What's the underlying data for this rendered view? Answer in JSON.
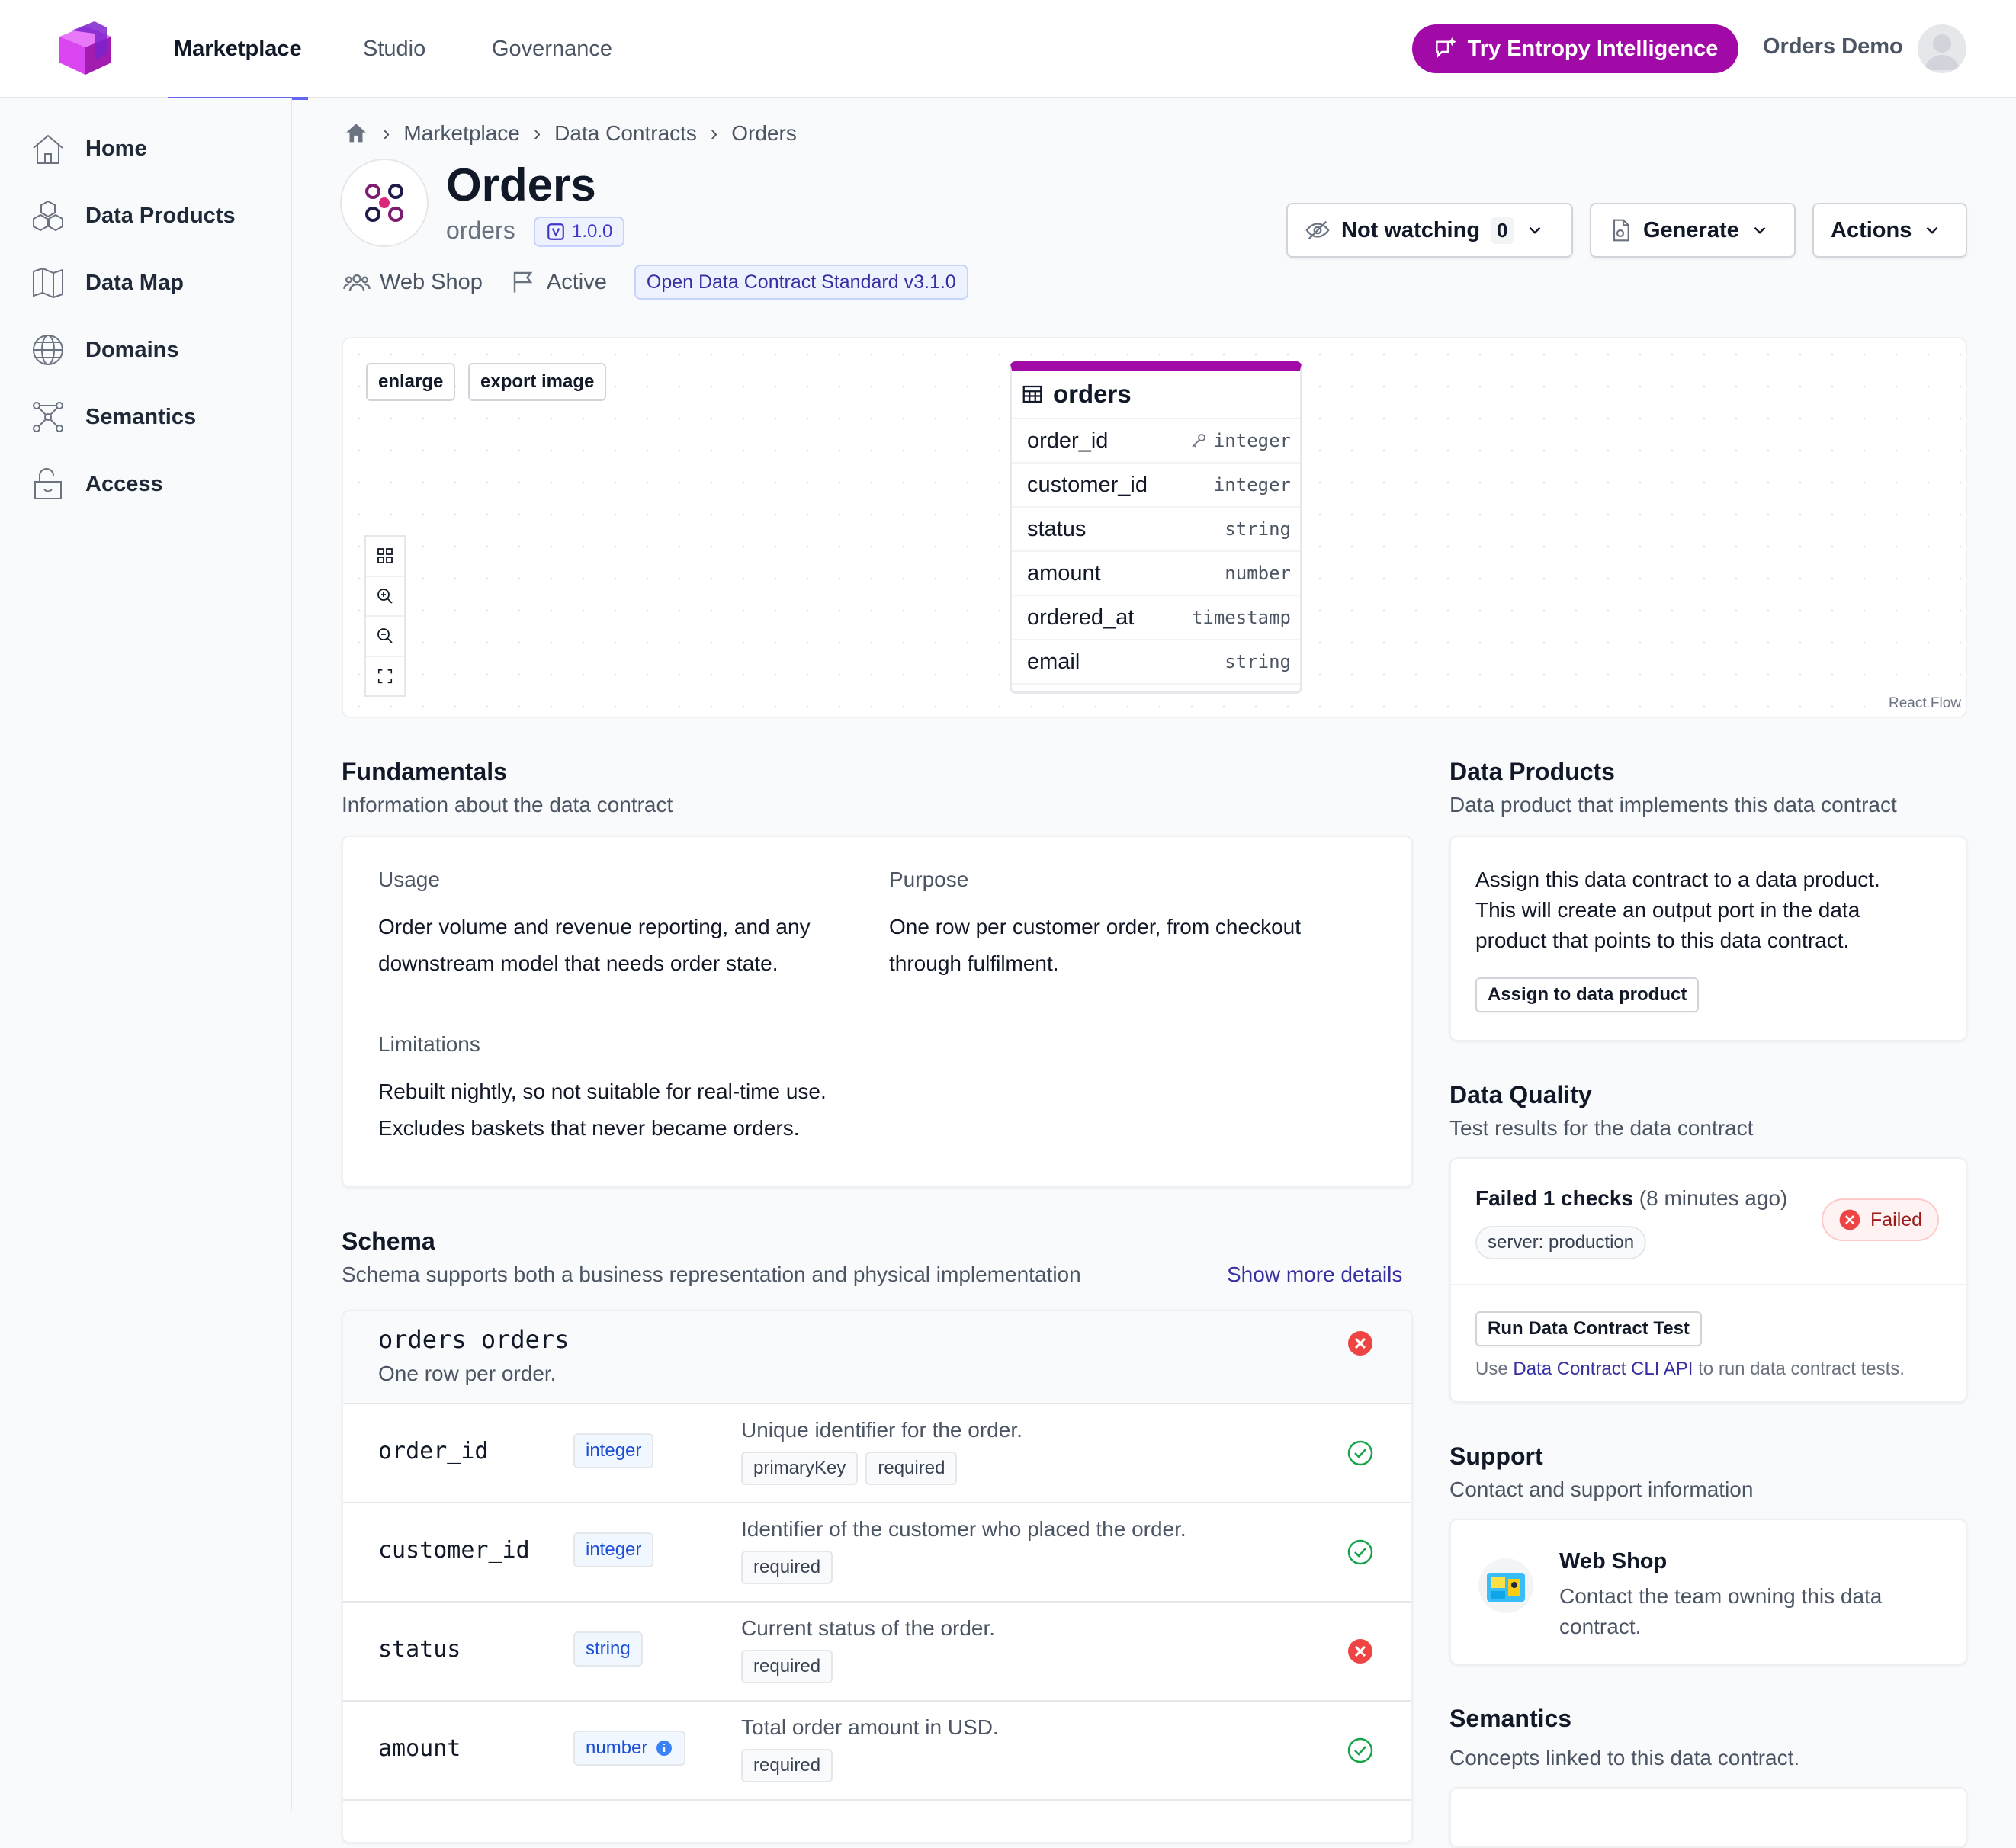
{
  "topbar": {
    "nav": [
      "Marketplace",
      "Studio",
      "Governance"
    ],
    "try_button": "Try Entropy Intelligence",
    "org": "Orders Demo"
  },
  "sidebar": {
    "items": [
      {
        "label": "Home",
        "icon": "home-icon"
      },
      {
        "label": "Data Products",
        "icon": "cubes-icon"
      },
      {
        "label": "Data Map",
        "icon": "map-icon"
      },
      {
        "label": "Domains",
        "icon": "globe-icon"
      },
      {
        "label": "Semantics",
        "icon": "graph-icon"
      },
      {
        "label": "Access",
        "icon": "lock-icon"
      }
    ]
  },
  "breadcrumb": [
    "Marketplace",
    "Data Contracts",
    "Orders"
  ],
  "header": {
    "title": "Orders",
    "id": "orders",
    "version": "1.0.0",
    "team": "Web Shop",
    "status": "Active",
    "standard": "Open Data Contract Standard v3.1.0",
    "watch_label": "Not watching",
    "watch_count": "0",
    "generate_label": "Generate",
    "actions_label": "Actions"
  },
  "diagram": {
    "enlarge": "enlarge",
    "export": "export image",
    "credit": "React Flow",
    "node_title": "orders",
    "fields": [
      {
        "name": "order_id",
        "type": "integer",
        "key": true
      },
      {
        "name": "customer_id",
        "type": "integer"
      },
      {
        "name": "status",
        "type": "string"
      },
      {
        "name": "amount",
        "type": "number"
      },
      {
        "name": "ordered_at",
        "type": "timestamp"
      },
      {
        "name": "email",
        "type": "string"
      }
    ]
  },
  "fundamentals": {
    "title": "Fundamentals",
    "subtitle": "Information about the data contract",
    "usage_label": "Usage",
    "usage_line1": "Order volume and revenue reporting, and any",
    "usage_line2": "downstream model that needs order state.",
    "purpose_label": "Purpose",
    "purpose_line1": "One row per customer order, from checkout",
    "purpose_line2": "through fulfilment.",
    "limitations_label": "Limitations",
    "limitations_line1": "Rebuilt nightly, so not suitable for real-time use.",
    "limitations_line2": "Excludes baskets that never became orders."
  },
  "schema": {
    "title": "Schema",
    "subtitle": "Schema supports both a business representation and physical implementation",
    "show_more": "Show more details",
    "table_name": "orders",
    "table_physical": "orders",
    "table_desc": "One row per order.",
    "rows": [
      {
        "name": "order_id",
        "type": "integer",
        "desc": "Unique identifier for the order.",
        "tags": [
          "primaryKey",
          "required"
        ],
        "ok": true
      },
      {
        "name": "customer_id",
        "type": "integer",
        "desc": "Identifier of the customer who placed the order.",
        "tags": [
          "required"
        ],
        "ok": true
      },
      {
        "name": "status",
        "type": "string",
        "desc": "Current status of the order.",
        "tags": [
          "required"
        ],
        "ok": false
      },
      {
        "name": "amount",
        "type": "number",
        "desc": "Total order amount in USD.",
        "tags": [
          "required"
        ],
        "ok": true,
        "info": true
      }
    ]
  },
  "data_products": {
    "title": "Data Products",
    "subtitle": "Data product that implements this data contract",
    "line1": "Assign this data contract to a data product.",
    "line2": "This will create an output port in the data",
    "line3": "product that points to this data contract.",
    "button": "Assign to data product"
  },
  "data_quality": {
    "title": "Data Quality",
    "subtitle": "Test results for the data contract",
    "result": "Failed 1 checks",
    "ago": "(8 minutes ago)",
    "badge": "Failed",
    "server": "server: production",
    "run_button": "Run Data Contract Test",
    "note_pre": "Use",
    "note_link": "Data Contract CLI API",
    "note_post": "to run data contract tests."
  },
  "support": {
    "title": "Support",
    "subtitle": "Contact and support information",
    "team": "Web Shop",
    "line1": "Contact the team owning this data",
    "line2": "contract."
  },
  "semantics": {
    "title": "Semantics",
    "subtitle": "Concepts linked to this data contract."
  },
  "colors": {
    "accent": "#a10aa6",
    "indigo": "#6366f1",
    "success": "#16a34a",
    "danger": "#ef4444"
  }
}
